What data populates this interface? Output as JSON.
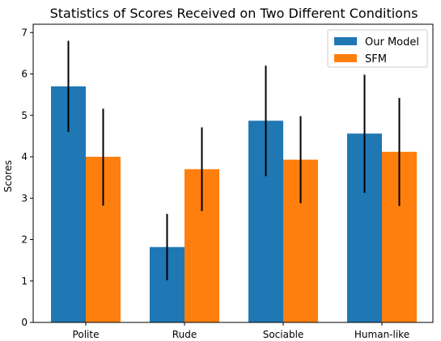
{
  "chart_data": {
    "type": "bar",
    "title": "Statistics of Scores Received on Two Different Conditions",
    "xlabel": "",
    "ylabel": "Scores",
    "categories": [
      "Polite",
      "Rude",
      "Sociable",
      "Human-like"
    ],
    "ylim": [
      0,
      7.2
    ],
    "yticks": [
      0,
      1,
      2,
      3,
      4,
      5,
      6,
      7
    ],
    "grid": false,
    "legend_position": "top-right",
    "series": [
      {
        "name": "Our Model",
        "color": "#1f77b4",
        "values": [
          5.7,
          1.82,
          4.87,
          4.56
        ],
        "error_low": [
          4.6,
          1.02,
          3.53,
          3.13
        ],
        "error_high": [
          6.8,
          2.62,
          6.2,
          5.98
        ]
      },
      {
        "name": "SFM",
        "color": "#ff7f0e",
        "values": [
          4.0,
          3.7,
          3.93,
          4.12
        ],
        "error_low": [
          2.82,
          2.69,
          2.88,
          2.81
        ],
        "error_high": [
          5.16,
          4.71,
          4.98,
          5.42
        ]
      }
    ]
  }
}
